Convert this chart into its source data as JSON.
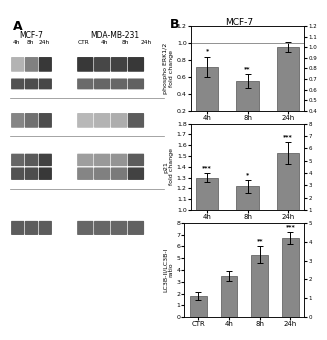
{
  "panel_B_title": "MCF-7",
  "panel_label": "B",
  "chart1": {
    "ylabel": "phospho ERK1/2\nfold change",
    "categories": [
      "4h",
      "8h",
      "24h"
    ],
    "values": [
      0.72,
      0.55,
      0.95
    ],
    "errors": [
      0.12,
      0.08,
      0.06
    ],
    "ylim": [
      0.2,
      1.2
    ],
    "yticks": [
      0.2,
      0.4,
      0.6,
      0.8,
      1.0,
      1.2
    ],
    "baseline": 1.0,
    "significance": [
      "*",
      "**",
      ""
    ],
    "right_yticks": [
      1.2,
      1.1,
      1.0,
      0.9,
      0.8,
      0.7,
      0.6,
      0.5,
      0.4
    ],
    "right_ylim": [
      0.4,
      1.2
    ]
  },
  "chart2": {
    "ylabel": "p21\nfold change",
    "categories": [
      "4h",
      "8h",
      "24h"
    ],
    "values": [
      1.3,
      1.22,
      1.53
    ],
    "errors": [
      0.04,
      0.06,
      0.1
    ],
    "ylim": [
      1.0,
      1.8
    ],
    "yticks": [
      1.0,
      1.1,
      1.2,
      1.3,
      1.4,
      1.5,
      1.6,
      1.7,
      1.8
    ],
    "baseline": null,
    "significance": [
      "***",
      "*",
      "***"
    ],
    "right_yticks": [
      8,
      7,
      6,
      5,
      4,
      3,
      2,
      1
    ],
    "right_ylim": [
      1,
      8
    ]
  },
  "chart3": {
    "ylabel": "LC3B-II/LC3B-I\nratio",
    "categories": [
      "CTR",
      "4h",
      "8h",
      "24h"
    ],
    "values": [
      1.8,
      3.5,
      5.3,
      6.7
    ],
    "errors": [
      0.3,
      0.4,
      0.7,
      0.5
    ],
    "ylim": [
      0,
      8
    ],
    "yticks": [
      0,
      1,
      2,
      3,
      4,
      5,
      6,
      7,
      8
    ],
    "baseline": null,
    "significance": [
      "",
      "",
      "**",
      "***"
    ],
    "right_yticks": [
      5,
      4,
      3,
      2,
      1,
      0
    ],
    "right_ylim": [
      0,
      5
    ]
  },
  "bar_color": "#888888",
  "bar_edge_color": "#555555",
  "background_color": "#ffffff",
  "fig_bg": "#ffffff",
  "blot_mcf7_labels": [
    "4h",
    "8h",
    "24h"
  ],
  "blot_mda_labels": [
    "CTR",
    "4h",
    "8h",
    "24h"
  ]
}
